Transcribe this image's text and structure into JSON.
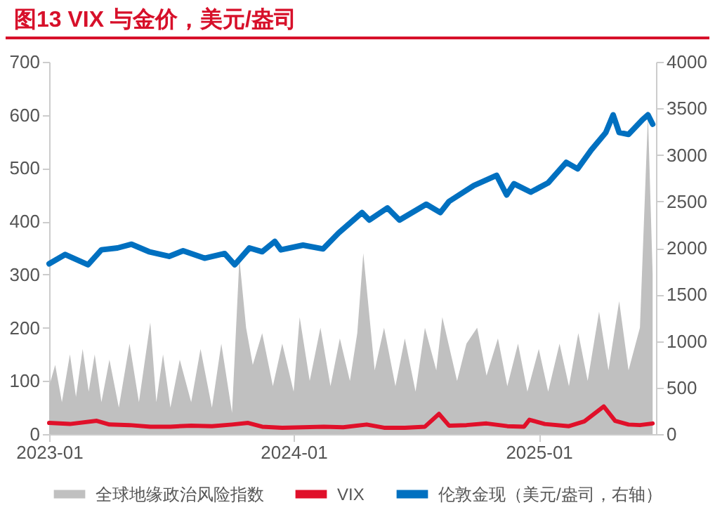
{
  "chart_data": {
    "type": "line",
    "title": "图13  VIX 与金价，美元/盎司",
    "xlim": [
      "2023-01-01",
      "2025-06-25"
    ],
    "xticks": [
      "2023-01",
      "2024-01",
      "2025-01"
    ],
    "ylim": [
      0,
      700
    ],
    "yticks": [
      0,
      100,
      200,
      300,
      400,
      500,
      600,
      700
    ],
    "y2lim": [
      0,
      4000
    ],
    "y2ticks": [
      0,
      500,
      1000,
      1500,
      2000,
      2500,
      3000,
      3500,
      4000
    ],
    "legend": "bottom",
    "grid": false,
    "series": [
      {
        "name": "全球地缘政治风险指数",
        "type": "area",
        "color": "#c0c0c0",
        "x": [
          "2023-01-01",
          "2023-01-10",
          "2023-01-20",
          "2023-02-01",
          "2023-02-10",
          "2023-02-20",
          "2023-03-01",
          "2023-03-10",
          "2023-03-20",
          "2023-04-01",
          "2023-04-15",
          "2023-05-01",
          "2023-05-15",
          "2023-06-01",
          "2023-06-10",
          "2023-06-20",
          "2023-07-01",
          "2023-07-15",
          "2023-08-01",
          "2023-08-15",
          "2023-09-01",
          "2023-09-15",
          "2023-10-01",
          "2023-10-12",
          "2023-10-22",
          "2023-11-01",
          "2023-11-15",
          "2023-12-01",
          "2023-12-15",
          "2024-01-01",
          "2024-01-10",
          "2024-01-25",
          "2024-02-10",
          "2024-02-25",
          "2024-03-10",
          "2024-03-25",
          "2024-04-05",
          "2024-04-14",
          "2024-05-01",
          "2024-05-15",
          "2024-06-01",
          "2024-06-15",
          "2024-07-01",
          "2024-07-15",
          "2024-08-01",
          "2024-08-10",
          "2024-09-01",
          "2024-09-15",
          "2024-10-01",
          "2024-10-15",
          "2024-11-01",
          "2024-11-15",
          "2024-12-01",
          "2024-12-15",
          "2025-01-01",
          "2025-01-15",
          "2025-02-01",
          "2025-02-15",
          "2025-03-01",
          "2025-03-15",
          "2025-04-01",
          "2025-04-15",
          "2025-05-01",
          "2025-05-15",
          "2025-06-01",
          "2025-06-13",
          "2025-06-20"
        ],
        "values": [
          90,
          130,
          60,
          150,
          70,
          160,
          80,
          150,
          60,
          140,
          50,
          170,
          60,
          210,
          60,
          150,
          50,
          140,
          60,
          160,
          50,
          170,
          40,
          330,
          200,
          130,
          190,
          90,
          170,
          80,
          220,
          100,
          200,
          90,
          180,
          100,
          190,
          340,
          120,
          200,
          90,
          180,
          80,
          200,
          120,
          220,
          100,
          170,
          200,
          110,
          180,
          90,
          170,
          80,
          160,
          80,
          170,
          90,
          190,
          100,
          230,
          120,
          250,
          120,
          200,
          600,
          300
        ]
      },
      {
        "name": "VIX",
        "color": "#e0102a",
        "x": [
          "2023-01-01",
          "2023-02-01",
          "2023-03-13",
          "2023-04-01",
          "2023-05-01",
          "2023-06-01",
          "2023-07-01",
          "2023-08-01",
          "2023-09-01",
          "2023-10-01",
          "2023-10-25",
          "2023-11-15",
          "2023-12-15",
          "2024-01-15",
          "2024-02-15",
          "2024-03-15",
          "2024-04-19",
          "2024-05-15",
          "2024-06-15",
          "2024-07-15",
          "2024-08-05",
          "2024-08-20",
          "2024-09-15",
          "2024-10-15",
          "2024-11-15",
          "2024-12-10",
          "2024-12-18",
          "2025-01-10",
          "2025-02-15",
          "2025-03-10",
          "2025-04-08",
          "2025-04-25",
          "2025-05-15",
          "2025-06-01",
          "2025-06-20"
        ],
        "values": [
          21,
          19,
          25,
          18,
          17,
          14,
          14,
          16,
          15,
          18,
          21,
          14,
          12,
          13,
          14,
          13,
          18,
          12,
          12,
          14,
          38,
          16,
          17,
          20,
          15,
          14,
          27,
          19,
          15,
          24,
          52,
          25,
          18,
          17,
          20
        ]
      },
      {
        "name": "伦敦金现（美元/盎司，右轴）",
        "type": "line",
        "axis": "y2",
        "color": "#0070c0",
        "x": [
          "2023-01-01",
          "2023-01-25",
          "2023-02-28",
          "2023-03-20",
          "2023-04-13",
          "2023-05-04",
          "2023-05-30",
          "2023-06-29",
          "2023-07-20",
          "2023-08-21",
          "2023-09-20",
          "2023-10-05",
          "2023-10-27",
          "2023-11-15",
          "2023-12-04",
          "2023-12-13",
          "2024-01-15",
          "2024-02-14",
          "2024-03-08",
          "2024-04-12",
          "2024-04-23",
          "2024-05-20",
          "2024-06-07",
          "2024-07-17",
          "2024-08-07",
          "2024-08-20",
          "2024-09-26",
          "2024-10-30",
          "2024-11-14",
          "2024-11-25",
          "2024-12-20",
          "2025-01-15",
          "2025-02-11",
          "2025-02-28",
          "2025-03-20",
          "2025-04-11",
          "2025-04-22",
          "2025-05-01",
          "2025-05-15",
          "2025-06-05",
          "2025-06-13",
          "2025-06-20"
        ],
        "values": [
          1830,
          1930,
          1820,
          1980,
          2000,
          2040,
          1960,
          1910,
          1970,
          1890,
          1940,
          1820,
          2000,
          1960,
          2070,
          1980,
          2030,
          1990,
          2160,
          2380,
          2300,
          2430,
          2300,
          2470,
          2380,
          2500,
          2670,
          2780,
          2570,
          2690,
          2600,
          2700,
          2920,
          2850,
          3050,
          3240,
          3430,
          3240,
          3220,
          3380,
          3430,
          3330
        ]
      }
    ]
  }
}
